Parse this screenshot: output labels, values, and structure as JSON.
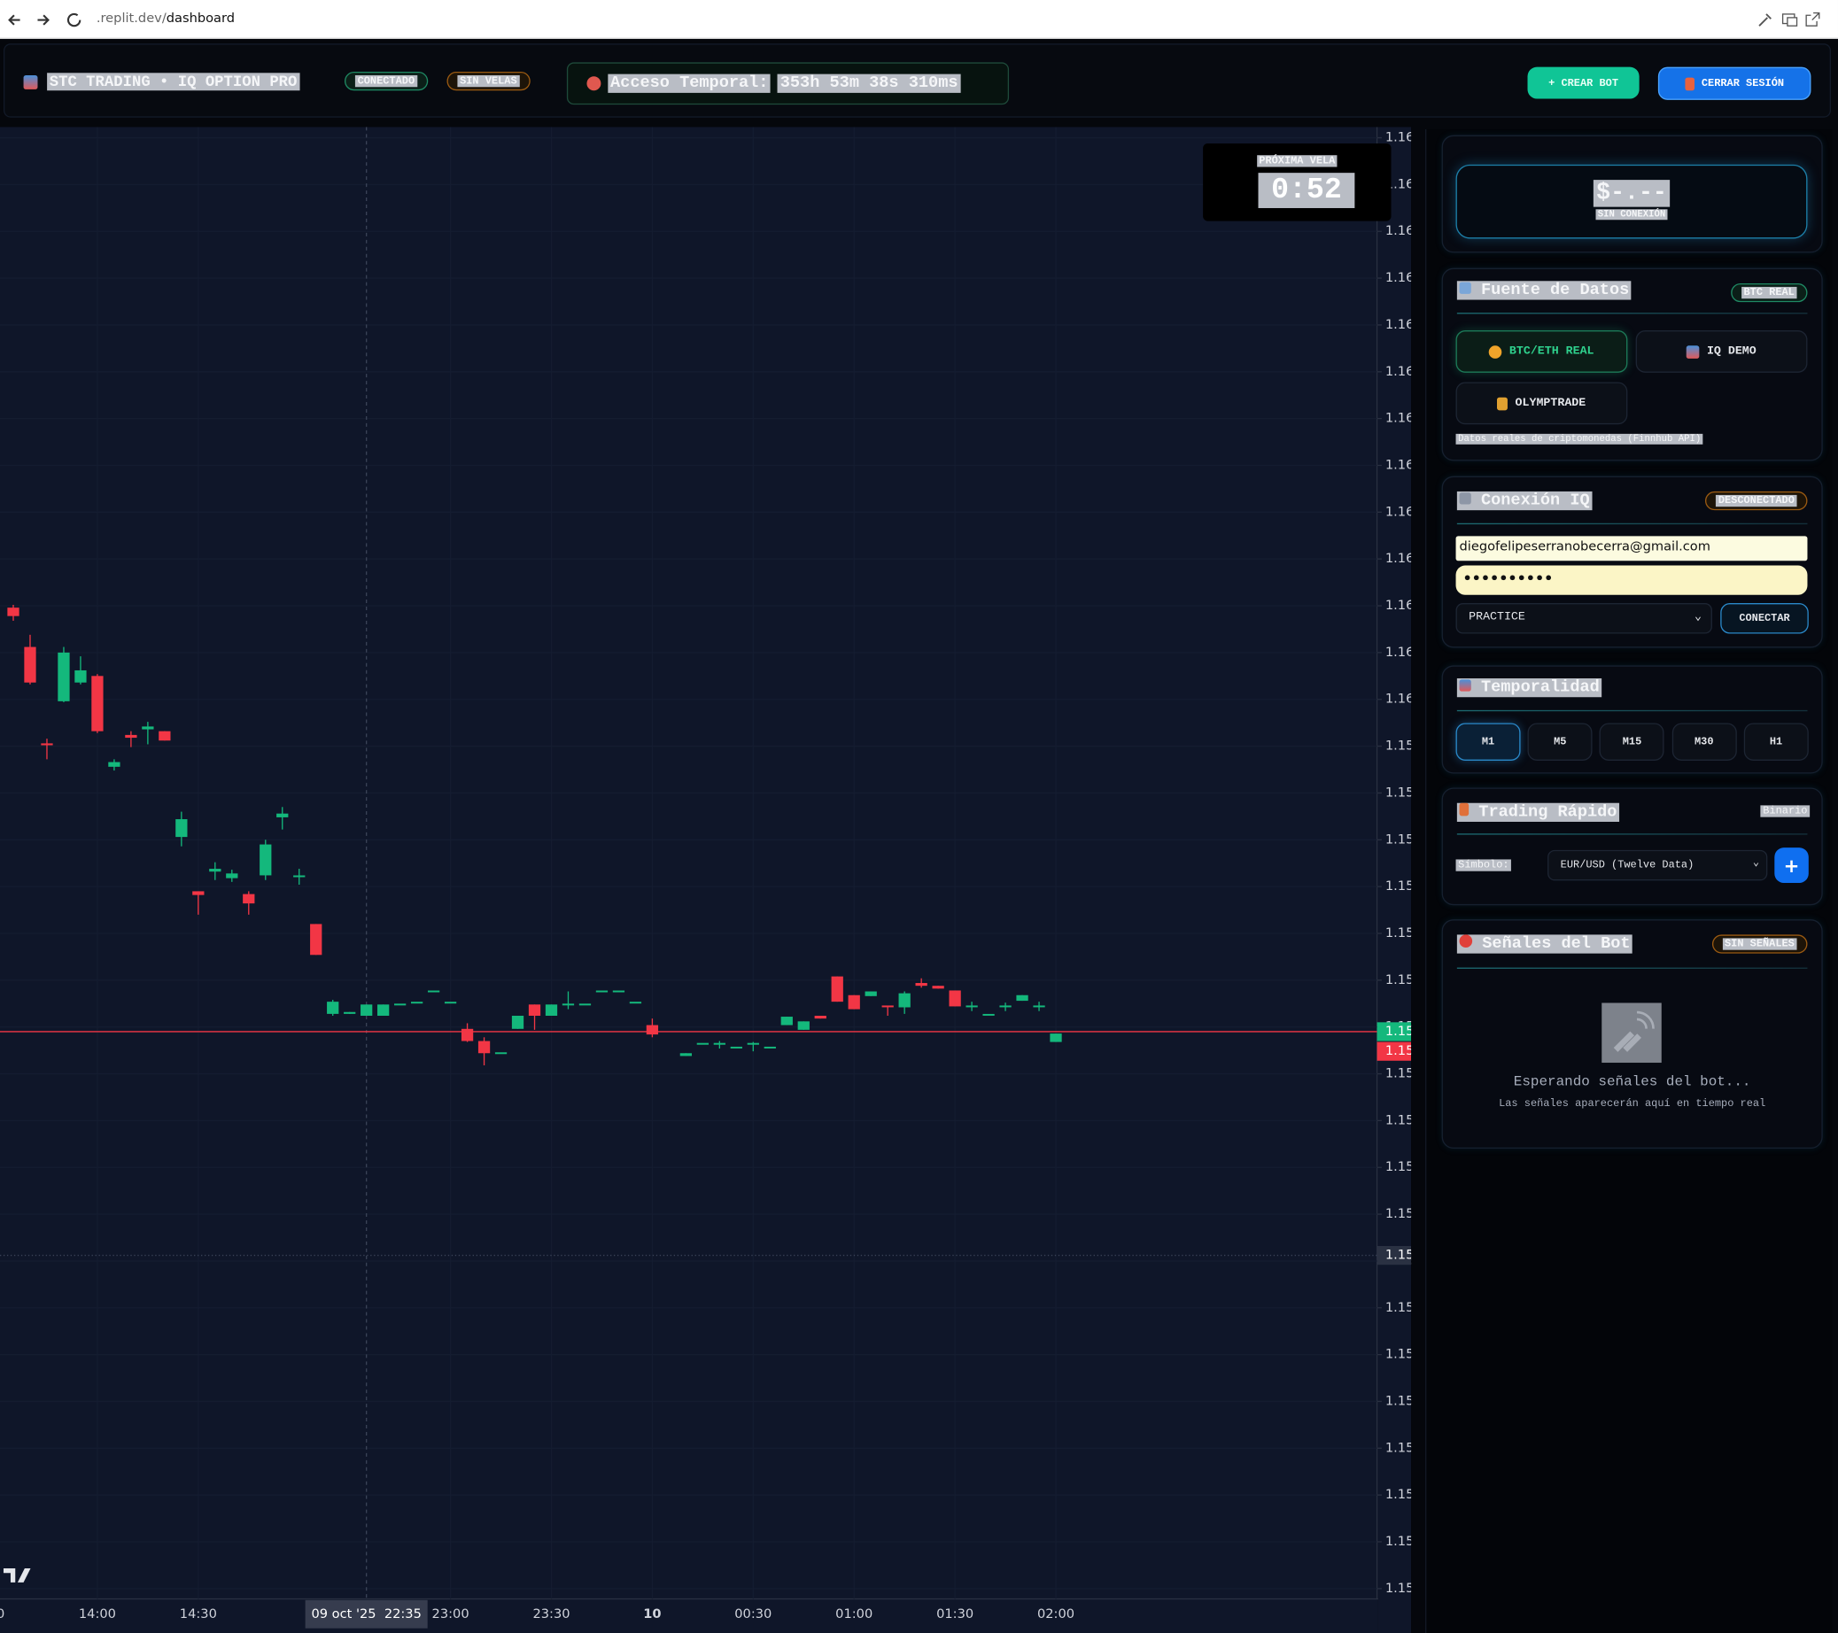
{
  "browser": {
    "url_host": ".replit.dev/",
    "url_path": "dashboard"
  },
  "header": {
    "title": "STC TRADING • IQ OPTION PRO",
    "status": "CONECTADO",
    "candles_status": "SIN VELAS",
    "access_label": "Acceso Temporal:",
    "access_time": "353h 53m 38s 310ms",
    "create_bot": "+ CREAR BOT",
    "logout": "CERRAR SESIÓN"
  },
  "chart_data": {
    "type": "candlestick",
    "categories": [
      "30",
      null,
      null,
      null,
      null,
      null,
      "14:00",
      null,
      null,
      null,
      null,
      null,
      "14:30",
      null,
      null,
      null,
      null,
      null,
      null,
      null,
      null,
      null,
      null,
      null,
      null,
      null,
      null,
      "23:00",
      null,
      null,
      null,
      null,
      null,
      "23:30",
      null,
      null,
      null,
      null,
      null,
      "10",
      null,
      null,
      null,
      null,
      null,
      "00:30",
      null,
      null,
      null,
      null,
      null,
      "01:00",
      null,
      null,
      null,
      null,
      null,
      "01:30",
      null,
      null,
      null,
      null,
      null,
      "02:00"
    ],
    "open": [
      null,
      1.16098,
      1.16056,
      1.15953,
      1.15998,
      1.16018,
      1.16025,
      1.15928,
      1.15962,
      1.15968,
      1.15966,
      1.15853,
      1.15795,
      1.15816,
      1.15809,
      1.15792,
      1.15812,
      1.15874,
      1.1581,
      1.1576,
      1.15664,
      1.15664,
      1.15662,
      1.15662,
      1.15674,
      1.15676,
      1.15688,
      1.15676,
      1.15648,
      1.15635,
      1.15622,
      1.15648,
      1.15674,
      1.15662,
      1.15674,
      1.15674,
      1.15688,
      1.15688,
      1.15676,
      1.15652,
      null,
      1.15619,
      1.15632,
      1.15632,
      1.15628,
      1.15632,
      1.15628,
      1.15652,
      1.15647,
      1.15662,
      1.15704,
      1.15684,
      1.15683,
      1.15672,
      1.15671,
      1.15697,
      1.15694,
      1.15689,
      1.15672,
      1.15663,
      1.15671,
      1.15678,
      1.15672,
      1.15634
    ],
    "high": [
      null,
      1.16101,
      1.16069,
      1.15958,
      1.16056,
      1.16046,
      1.16027,
      1.15936,
      1.15966,
      1.15976,
      1.15966,
      1.1588,
      1.15795,
      1.15826,
      1.15818,
      1.15795,
      1.1585,
      1.15885,
      1.15819,
      1.1576,
      1.15679,
      1.15666,
      1.15674,
      1.15674,
      1.15674,
      1.15676,
      1.15688,
      1.15676,
      1.15654,
      1.15639,
      1.15622,
      1.15662,
      1.15674,
      1.15674,
      1.15688,
      1.15674,
      1.15688,
      1.15688,
      1.15676,
      1.15659,
      null,
      1.15622,
      1.15632,
      1.15635,
      1.15628,
      1.15634,
      1.15628,
      1.15661,
      1.15656,
      1.15662,
      1.15704,
      1.15684,
      1.15688,
      1.15672,
      1.15688,
      1.15702,
      1.15694,
      1.15689,
      1.15677,
      1.15663,
      1.15676,
      1.15684,
      1.15677,
      1.15643
    ],
    "low": [
      null,
      1.16084,
      1.16016,
      1.15936,
      1.15997,
      1.16016,
      1.15964,
      1.15924,
      1.15949,
      1.15952,
      1.15956,
      1.15843,
      1.1577,
      1.15807,
      1.15805,
      1.1577,
      1.15807,
      1.15861,
      1.15802,
      1.15727,
      1.15662,
      1.15664,
      1.15662,
      1.15662,
      1.15674,
      1.15676,
      1.15688,
      1.15676,
      1.15634,
      1.15609,
      1.15622,
      1.15648,
      1.15647,
      1.15662,
      1.15669,
      1.15674,
      1.15688,
      1.15688,
      1.15676,
      1.15639,
      null,
      1.15619,
      1.15632,
      1.15627,
      1.15628,
      1.15624,
      1.15628,
      1.15652,
      1.15647,
      1.15659,
      1.15677,
      1.15669,
      1.15683,
      1.15662,
      1.15664,
      1.15692,
      1.15691,
      1.15672,
      1.15667,
      1.15663,
      1.15667,
      1.15678,
      1.15667,
      1.15634
    ],
    "close": [
      null,
      1.16089,
      1.16018,
      1.15951,
      1.1605,
      1.16031,
      1.15966,
      1.15933,
      1.15959,
      1.15971,
      1.15956,
      1.15872,
      1.15791,
      1.15819,
      1.15814,
      1.15782,
      1.15845,
      1.15878,
      1.15811,
      1.15727,
      1.15677,
      1.15666,
      1.15674,
      1.15674,
      1.15674,
      1.15676,
      1.15688,
      1.15676,
      1.15635,
      1.15622,
      1.15622,
      1.15662,
      1.15662,
      1.15674,
      1.15674,
      1.15674,
      1.15688,
      1.15688,
      1.15676,
      1.15642,
      null,
      1.15622,
      1.15632,
      1.15632,
      1.15628,
      1.15632,
      1.15628,
      1.15661,
      1.15656,
      1.15659,
      1.15677,
      1.15669,
      1.15688,
      1.15671,
      1.15686,
      1.15694,
      1.15691,
      1.15672,
      1.15672,
      1.15663,
      1.15672,
      1.15684,
      1.15672,
      1.15643
    ],
    "up_color": "#14b87c",
    "down_color": "#f23645",
    "ylim": [
      1.15039,
      1.16609
    ],
    "yticks": [
      {
        "value": 1.166,
        "label": "1.16"
      },
      {
        "value": 1.1655,
        "label": "1.16"
      },
      {
        "value": 1.165,
        "label": "1.16"
      },
      {
        "value": 1.1645,
        "label": "1.16"
      },
      {
        "value": 1.164,
        "label": "1.16"
      },
      {
        "value": 1.1635,
        "label": "1.16"
      },
      {
        "value": 1.163,
        "label": "1.16"
      },
      {
        "value": 1.1625,
        "label": "1.16"
      },
      {
        "value": 1.162,
        "label": "1.16"
      },
      {
        "value": 1.1615,
        "label": "1.16"
      },
      {
        "value": 1.161,
        "label": "1.16"
      },
      {
        "value": 1.1605,
        "label": "1.16"
      },
      {
        "value": 1.16,
        "label": "1.16"
      },
      {
        "value": 1.1595,
        "label": "1.15"
      },
      {
        "value": 1.159,
        "label": "1.15"
      },
      {
        "value": 1.1585,
        "label": "1.15"
      },
      {
        "value": 1.158,
        "label": "1.15"
      },
      {
        "value": 1.1575,
        "label": "1.15"
      },
      {
        "value": 1.157,
        "label": "1.15"
      },
      {
        "value": 1.1565,
        "label": "1.15"
      },
      {
        "value": 1.156,
        "label": "1.15"
      },
      {
        "value": 1.1555,
        "label": "1.15"
      },
      {
        "value": 1.155,
        "label": "1.15"
      },
      {
        "value": 1.1545,
        "label": "1.15"
      },
      {
        "value": 1.154,
        "label": "1.15"
      },
      {
        "value": 1.1535,
        "label": "1.15"
      },
      {
        "value": 1.153,
        "label": "1.15"
      },
      {
        "value": 1.1525,
        "label": "1.15"
      },
      {
        "value": 1.152,
        "label": "1.15"
      },
      {
        "value": 1.1515,
        "label": "1.15"
      },
      {
        "value": 1.151,
        "label": "1.15"
      },
      {
        "value": 1.1505,
        "label": "1.15"
      }
    ],
    "grid": true,
    "markers": [
      {
        "value": 1.15645,
        "label": "1.15",
        "color": "#14b87c",
        "line_style": "solid",
        "line_color": "#f23645"
      },
      {
        "value": 1.15624,
        "label": "1.15",
        "color": "#f23645"
      },
      {
        "value": 1.15406,
        "label": "1.15",
        "color": "#2a3142",
        "line_style": "dotted",
        "line_color": "#3a4257"
      }
    ],
    "crosshair_label": "09 oct '25  22:35"
  },
  "countdown": {
    "label": "PRÓXIMA VELA",
    "value": "0:52"
  },
  "balance": {
    "amount": "$-.--",
    "status": "SIN CONEXIÓN"
  },
  "data_source": {
    "title": "Fuente de Datos",
    "badge": "BTC REAL",
    "options": [
      "BTC/ETH REAL",
      "IQ DEMO",
      "OLYMPTRADE"
    ],
    "note": "Datos reales de criptomonedas (Finnhub API)"
  },
  "iq_connection": {
    "title": "Conexión IQ",
    "badge": "DESCONECTADO",
    "email": "diegofelipeserranobecerra@gmail.com",
    "password": "••••••••••",
    "account": "PRACTICE",
    "button": "CONECTAR"
  },
  "timeframe": {
    "title": "Temporalidad",
    "options": [
      "M1",
      "M5",
      "M15",
      "M30",
      "H1"
    ]
  },
  "quick_trading": {
    "title": "Trading Rápido",
    "mode": "Binario",
    "symbol_label": "Símbolo:",
    "symbol": "EUR/USD (Twelve Data)",
    "add": "+"
  },
  "bot_signals": {
    "title": "Señales del Bot",
    "badge": "SIN SEÑALES",
    "empty_title": "Esperando señales del bot...",
    "empty_text": "Las señales aparecerán aquí en tiempo real"
  }
}
